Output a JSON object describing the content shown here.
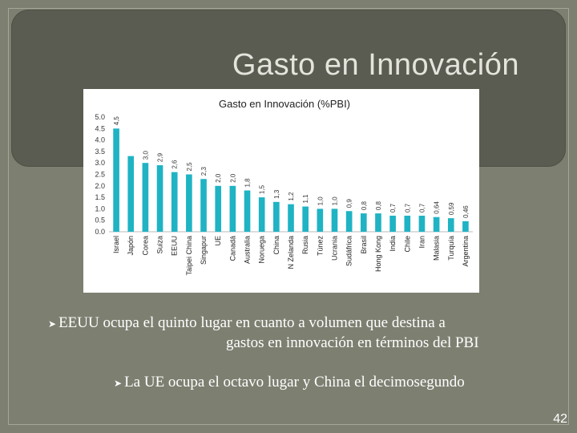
{
  "slide": {
    "title": "Gasto en Innovación",
    "bullets": [
      {
        "line1": "EEUU ocupa el quinto lugar en cuanto a volumen que destina a",
        "line2": "gastos en innovación en términos del PBI"
      },
      {
        "line1": "La UE ocupa el octavo lugar y China el decimosegundo"
      }
    ],
    "page_number": "42",
    "colors": {
      "background": "#7d8071",
      "title_band": "#5a5c51",
      "bar": "#1fb3c4"
    }
  },
  "chart_data": {
    "type": "bar",
    "title": "Gasto en Innovación  (%PBI)",
    "categories": [
      "Israel",
      "Japón",
      "Corea",
      "Suiza",
      "EEUU",
      "Taipei China",
      "Singapur",
      "UE",
      "Canadá",
      "Australia",
      "Noruega",
      "China",
      "N Zelanda",
      "Rusia",
      "Túnez",
      "Ucrania",
      "Sudáfrica",
      "Brasil",
      "Hong Kong",
      "India",
      "Chile",
      "Iran",
      "Malasia",
      "Turquía",
      "Argentina"
    ],
    "values": [
      4.5,
      3.3,
      3.0,
      2.9,
      2.6,
      2.5,
      2.3,
      2.0,
      2.0,
      1.8,
      1.5,
      1.3,
      1.2,
      1.1,
      1.0,
      1.0,
      0.9,
      0.8,
      0.8,
      0.7,
      0.7,
      0.7,
      0.64,
      0.59,
      0.46
    ],
    "value_labels": [
      "4,5",
      "",
      "3,0",
      "2,9",
      "2,6",
      "2,5",
      "2,3",
      "2,0",
      "2,0",
      "1,8",
      "1,5",
      "1,3",
      "1,2",
      "1,1",
      "1,0",
      "1,0",
      "0,9",
      "0,8",
      "0,8",
      "0,7",
      "0,7",
      "0,7",
      "0,64",
      "0,59",
      "0,46"
    ],
    "y_ticks": [
      "5.0",
      "4.5",
      "4.0",
      "3.5",
      "3.0",
      "2.5",
      "2.0",
      "1.5",
      "1.0",
      "0.5",
      "0.0"
    ],
    "ylim": [
      0,
      5
    ],
    "xlabel": "",
    "ylabel": "",
    "grid": false,
    "legend": "none"
  }
}
